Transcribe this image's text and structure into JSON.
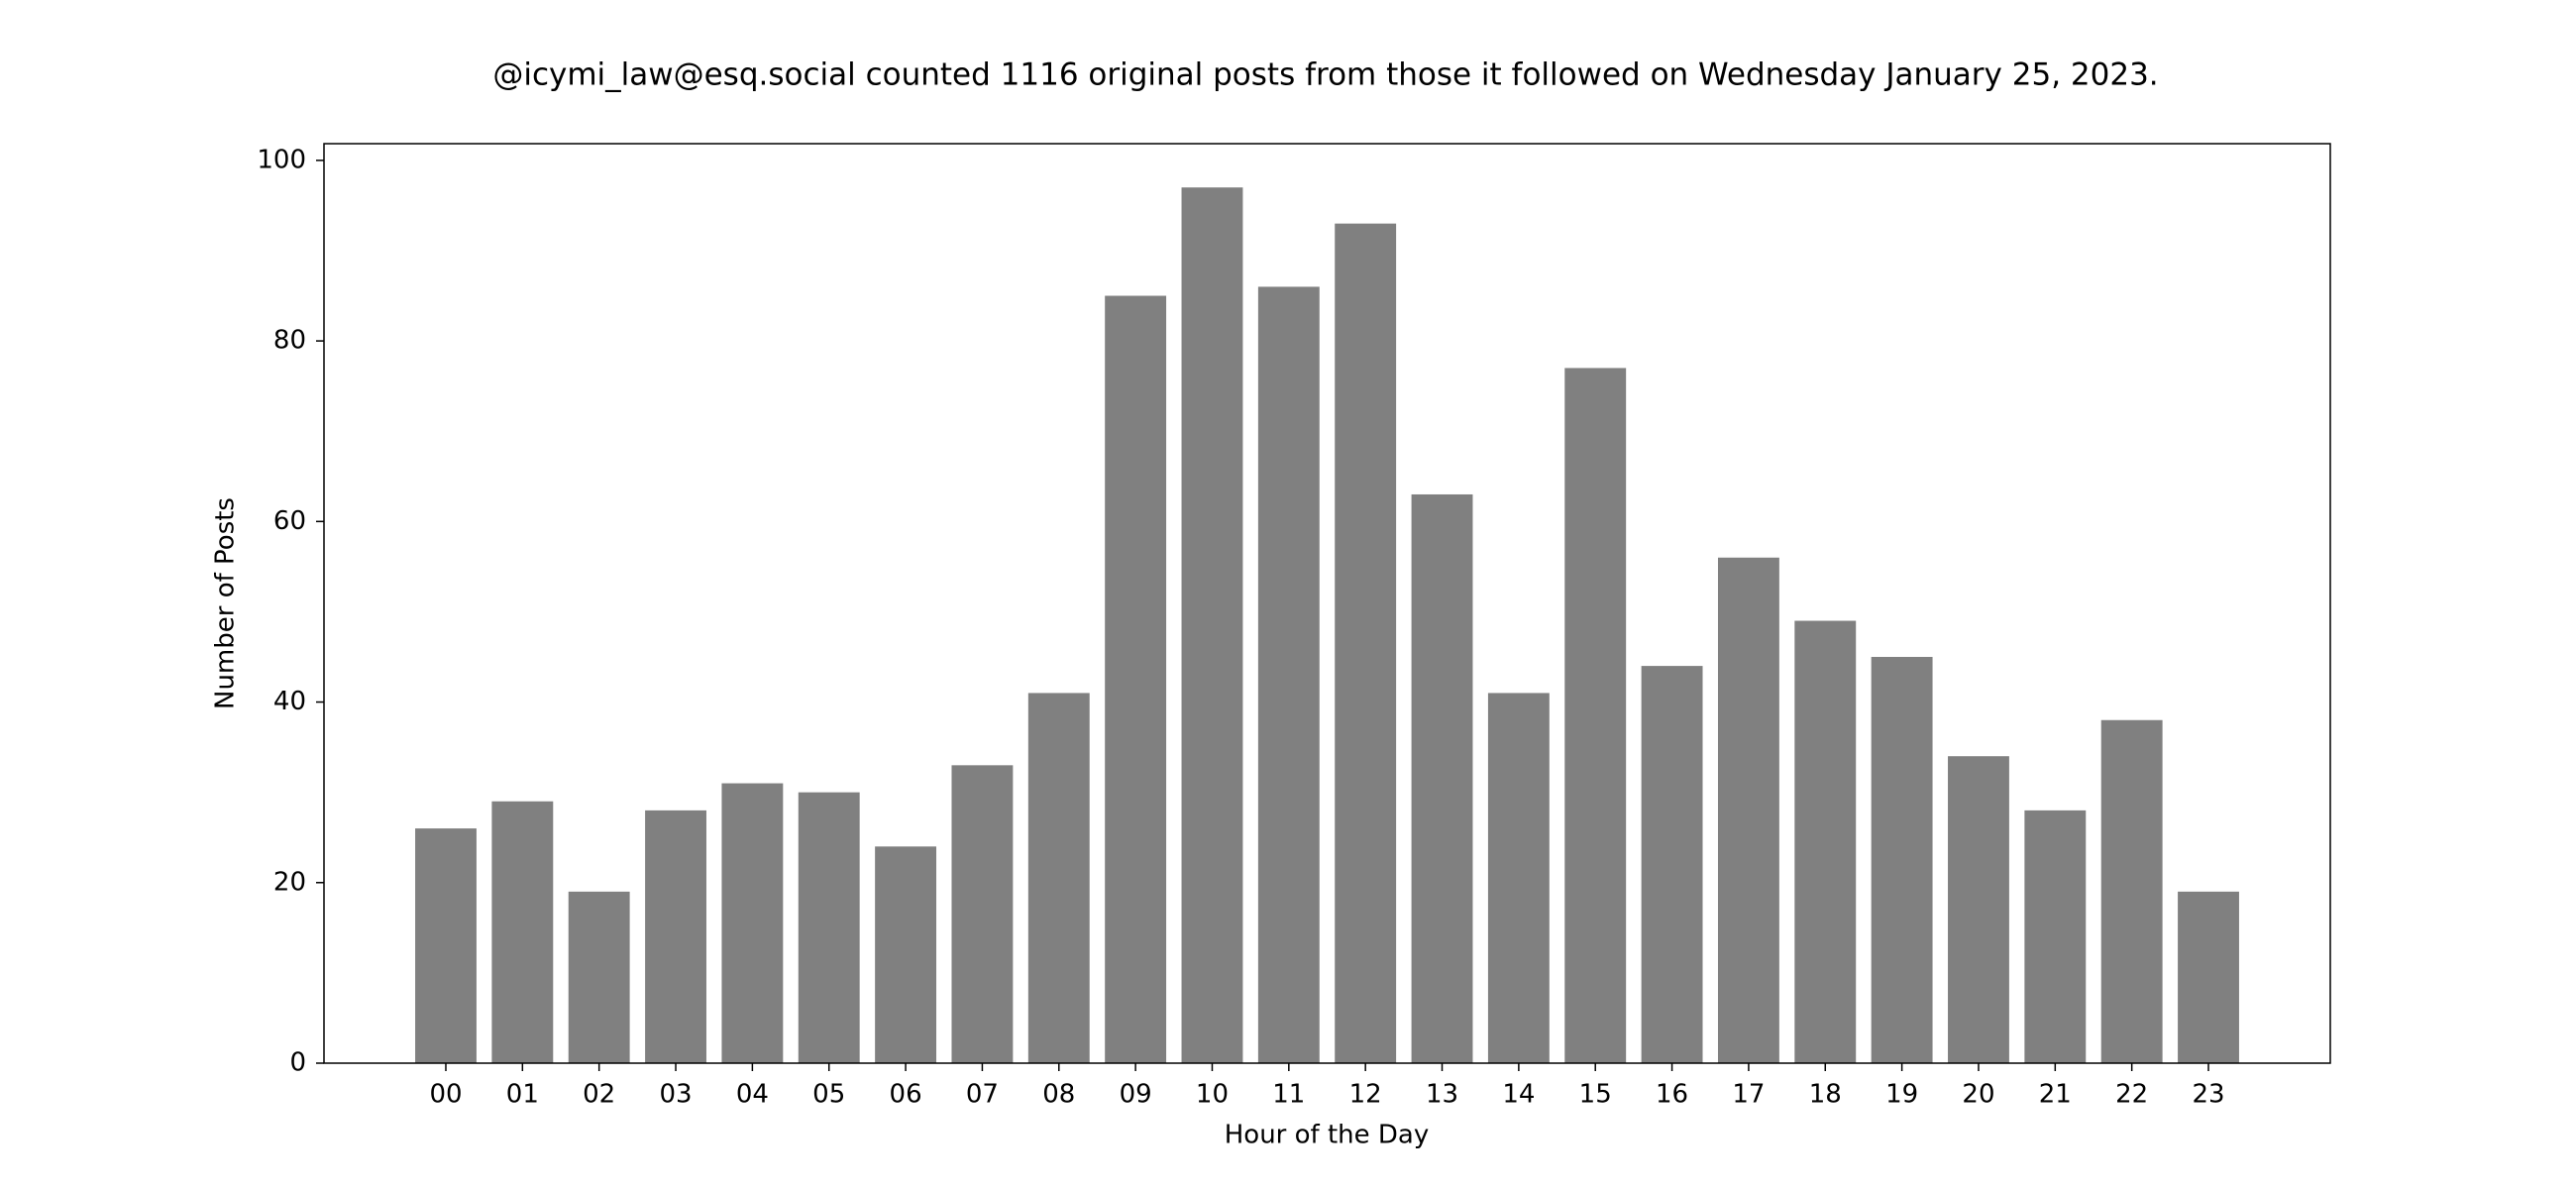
{
  "chart_data": {
    "type": "bar",
    "title": "@icymi_law@esq.social counted 1116 original posts from those it followed on Wednesday January 25, 2023.",
    "x_label": "Hour of the Day",
    "y_label": "Number of Posts",
    "categories": [
      "00",
      "01",
      "02",
      "03",
      "04",
      "05",
      "06",
      "07",
      "08",
      "09",
      "10",
      "11",
      "12",
      "13",
      "14",
      "15",
      "16",
      "17",
      "18",
      "19",
      "20",
      "21",
      "22",
      "23"
    ],
    "values": [
      26,
      29,
      19,
      28,
      31,
      30,
      24,
      33,
      41,
      85,
      97,
      86,
      93,
      63,
      41,
      77,
      44,
      56,
      49,
      45,
      34,
      28,
      38,
      19
    ],
    "color": "#808080",
    "ylim": [
      0,
      101.85
    ],
    "yticks": [
      0,
      20,
      40,
      60,
      80,
      100
    ],
    "grid": false
  }
}
